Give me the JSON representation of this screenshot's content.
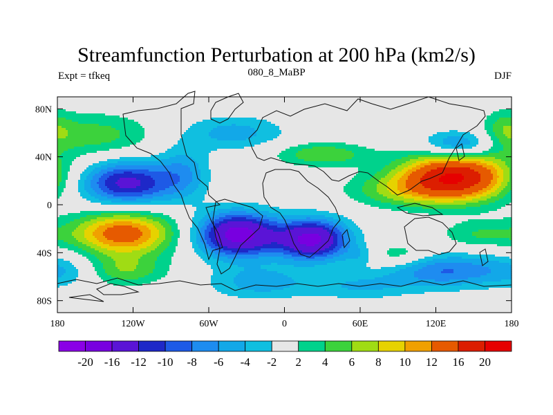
{
  "chart_data": {
    "type": "heatmap",
    "title": "Streamfunction Perturbation at 200 hPa (km2/s)",
    "left_string": "Expt = tfkeq",
    "center_string": "080_8_MaBP",
    "right_string": "DJF",
    "xlim": [
      -180,
      180
    ],
    "ylim": [
      -90,
      90
    ],
    "x_ticks": [
      -180,
      -120,
      -60,
      0,
      60,
      120,
      180
    ],
    "x_tick_labels": [
      "180",
      "120W",
      "60W",
      "0",
      "60E",
      "120E",
      "180"
    ],
    "y_ticks": [
      80,
      40,
      0,
      -40,
      -80
    ],
    "y_tick_labels": [
      "80N",
      "40N",
      "0",
      "40S",
      "80S"
    ],
    "levels": [
      -20,
      -16,
      -12,
      -10,
      -8,
      -6,
      -4,
      -2,
      2,
      4,
      6,
      8,
      10,
      12,
      16,
      20
    ],
    "level_labels": [
      "-20",
      "-16",
      "-12",
      "-10",
      "-8",
      "-6",
      "-4",
      "-2",
      "2",
      "4",
      "6",
      "8",
      "10",
      "12",
      "16",
      "20"
    ],
    "colors": [
      "#8a00e6",
      "#7800e0",
      "#5a14d6",
      "#1e28c8",
      "#1e5ae6",
      "#1e8cf0",
      "#12a8e8",
      "#10bfe0",
      "#e6e6e6",
      "#00d28c",
      "#3cd23c",
      "#a0dc14",
      "#e6d200",
      "#f0a000",
      "#e65a00",
      "#dc1e00",
      "#e60000"
    ],
    "features": [
      {
        "lon": -125,
        "lat": 18,
        "amp": -13,
        "sx": 26,
        "sy": 13
      },
      {
        "lon": -37,
        "lat": -25,
        "amp": -18,
        "sx": 22,
        "sy": 13
      },
      {
        "lon": 22,
        "lat": -29,
        "amp": -17,
        "sx": 20,
        "sy": 12
      },
      {
        "lon": 138,
        "lat": 50,
        "amp": -8,
        "sx": 20,
        "sy": 8
      },
      {
        "lon": 128,
        "lat": -55,
        "amp": -8,
        "sx": 32,
        "sy": 10
      },
      {
        "lon": -80,
        "lat": 27,
        "amp": -5,
        "sx": 14,
        "sy": 16
      },
      {
        "lon": -40,
        "lat": 60,
        "amp": -5,
        "sx": 28,
        "sy": 10
      },
      {
        "lon": -170,
        "lat": -55,
        "amp": -4,
        "sx": 22,
        "sy": 10
      },
      {
        "lon": -20,
        "lat": -65,
        "amp": -5,
        "sx": 28,
        "sy": 10
      },
      {
        "lon": 60,
        "lat": -68,
        "amp": -4,
        "sx": 30,
        "sy": 8
      },
      {
        "lon": 60,
        "lat": -42,
        "amp": -3,
        "sx": 10,
        "sy": 6
      },
      {
        "lon": 135,
        "lat": 23,
        "amp": 20,
        "sx": 30,
        "sy": 14
      },
      {
        "lon": -128,
        "lat": -24,
        "amp": 14,
        "sx": 28,
        "sy": 13
      },
      {
        "lon": -150,
        "lat": 58,
        "amp": 5,
        "sx": 32,
        "sy": 13
      },
      {
        "lon": 30,
        "lat": 42,
        "amp": 6,
        "sx": 26,
        "sy": 7
      },
      {
        "lon": -130,
        "lat": -55,
        "amp": 6,
        "sx": 25,
        "sy": 9
      },
      {
        "lon": 90,
        "lat": -42,
        "amp": 4,
        "sx": 18,
        "sy": 7
      },
      {
        "lon": 90,
        "lat": 12,
        "amp": 5,
        "sx": 30,
        "sy": 10
      },
      {
        "lon": 155,
        "lat": -25,
        "amp": 4,
        "sx": 22,
        "sy": 8
      },
      {
        "lon": 175,
        "lat": 62,
        "amp": 4,
        "sx": 12,
        "sy": 12
      }
    ]
  }
}
